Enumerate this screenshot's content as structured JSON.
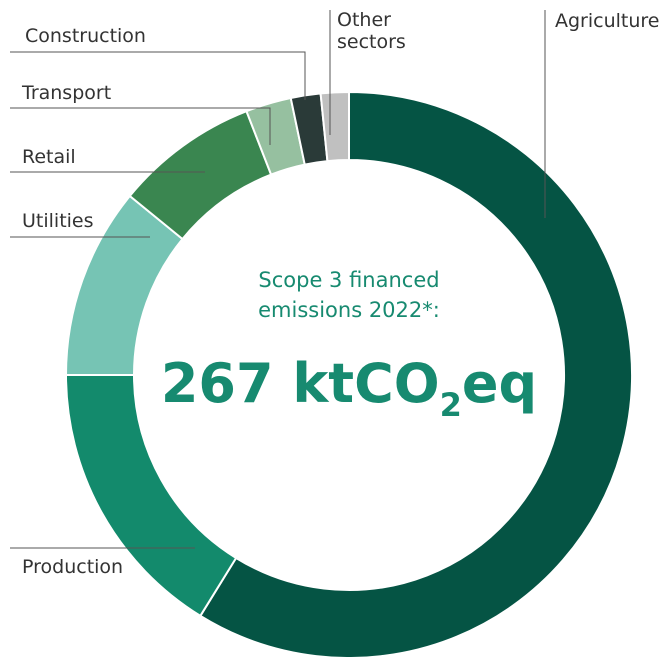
{
  "chart_data": {
    "type": "donut",
    "categories": [
      "Agriculture",
      "Production",
      "Utilities",
      "Retail",
      "Transport",
      "Construction",
      "Other sectors"
    ],
    "values": [
      58.8,
      16.2,
      10.9,
      8.2,
      2.6,
      1.7,
      1.6
    ],
    "colors": [
      "#055444",
      "#138a6c",
      "#76c4b4",
      "#3a8650",
      "#96c0a0",
      "#2a3a38",
      "#c0c0c0"
    ],
    "center_label": [
      "Scope 3 financed",
      "emissions 2022*:"
    ],
    "total": {
      "text": "267 ktCO",
      "subscript": "2",
      "suffix": "eq"
    }
  }
}
